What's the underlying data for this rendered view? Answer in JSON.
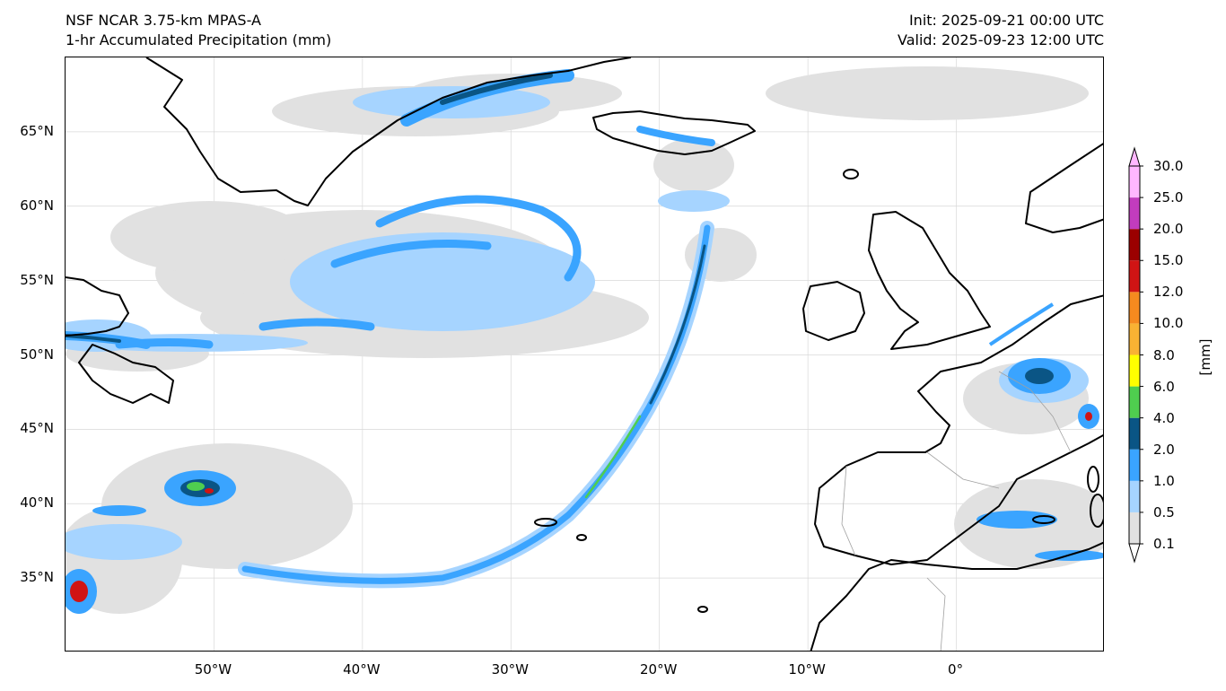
{
  "header": {
    "title_line1": "NSF NCAR 3.75-km MPAS-A",
    "title_line2": "1-hr Accumulated Precipitation (mm)",
    "init": "Init: 2025-09-21 00:00 UTC",
    "valid": "Valid: 2025-09-23 12:00 UTC"
  },
  "map": {
    "lat_ticks": [
      {
        "lat": 65,
        "label": "65°N"
      },
      {
        "lat": 60,
        "label": "60°N"
      },
      {
        "lat": 55,
        "label": "55°N"
      },
      {
        "lat": 50,
        "label": "50°N"
      },
      {
        "lat": 45,
        "label": "45°N"
      },
      {
        "lat": 40,
        "label": "40°N"
      },
      {
        "lat": 35,
        "label": "35°N"
      }
    ],
    "lon_ticks": [
      {
        "lon": -50,
        "label": "50°W"
      },
      {
        "lon": -40,
        "label": "40°W"
      },
      {
        "lon": -30,
        "label": "30°W"
      },
      {
        "lon": -20,
        "label": "20°W"
      },
      {
        "lon": -10,
        "label": "10°W"
      },
      {
        "lon": 0,
        "label": "0°"
      }
    ],
    "extent": {
      "lon_min": -60,
      "lon_max": 10,
      "lat_min": 30,
      "lat_max": 70
    }
  },
  "colorbar": {
    "units": "[mm]",
    "levels": [
      "0.1",
      "0.5",
      "1.0",
      "2.0",
      "4.0",
      "6.0",
      "8.0",
      "10.0",
      "12.0",
      "15.0",
      "20.0",
      "25.0",
      "30.0"
    ],
    "colors": [
      "#e1e1e1",
      "#a6d4ff",
      "#3aa4ff",
      "#0a5585",
      "#4fce4f",
      "#ffff00",
      "#f9b233",
      "#f58a1f",
      "#d01414",
      "#9b0000",
      "#c23cbe",
      "#ffb7ff"
    ],
    "extend": "both"
  },
  "legend_colors": {
    "coast": "#000000",
    "border": "#a0a0a0",
    "grid": "#d8d8d8"
  }
}
